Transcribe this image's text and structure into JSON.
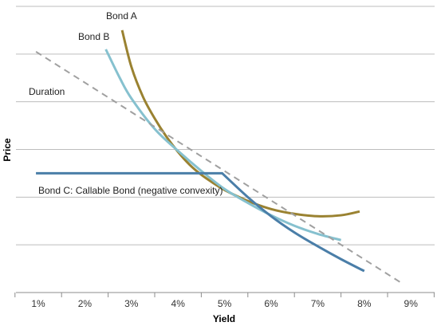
{
  "chart_data": {
    "type": "line",
    "title": "",
    "xlabel": "Yield",
    "ylabel": "Price",
    "x_tick_labels": [
      "1%",
      "2%",
      "3%",
      "4%",
      "5%",
      "6%",
      "7%",
      "8%",
      "9%"
    ],
    "xlim": [
      0.5,
      9.5
    ],
    "ylim": [
      0,
      6
    ],
    "grid": "horizontal",
    "y_tick_labels_shown": false,
    "series": [
      {
        "name": "Bond A",
        "color": "#9a8231",
        "style": "solid",
        "x": [
          2.8,
          3.0,
          3.25,
          3.5,
          3.75,
          4.0,
          4.25,
          4.5,
          4.75,
          5.0,
          5.5,
          6.0,
          6.5,
          7.0,
          7.5,
          7.9
        ],
        "y": [
          5.5,
          4.73,
          4.1,
          3.65,
          3.27,
          2.95,
          2.68,
          2.47,
          2.3,
          2.15,
          1.92,
          1.75,
          1.65,
          1.6,
          1.62,
          1.7
        ]
      },
      {
        "name": "Bond B",
        "color": "#86c1cf",
        "style": "solid",
        "x": [
          2.45,
          2.75,
          3.0,
          3.5,
          4.0,
          4.5,
          5.0,
          5.5,
          6.0,
          6.5,
          7.0,
          7.5
        ],
        "y": [
          5.1,
          4.5,
          4.07,
          3.43,
          2.97,
          2.55,
          2.17,
          1.88,
          1.62,
          1.4,
          1.23,
          1.1
        ]
      },
      {
        "name": "Duration",
        "color": "#a0a0a0",
        "style": "dashed",
        "x": [
          0.95,
          8.8
        ],
        "y": [
          5.05,
          0.2
        ]
      },
      {
        "name": "Bond C: Callable Bond (negative convexity)",
        "color": "#4a7ea8",
        "style": "solid",
        "x": [
          0.95,
          4.95,
          5.5,
          6.0,
          6.5,
          7.0,
          7.5,
          8.0
        ],
        "y": [
          2.5,
          2.5,
          2.0,
          1.6,
          1.26,
          0.97,
          0.7,
          0.45
        ]
      }
    ]
  }
}
